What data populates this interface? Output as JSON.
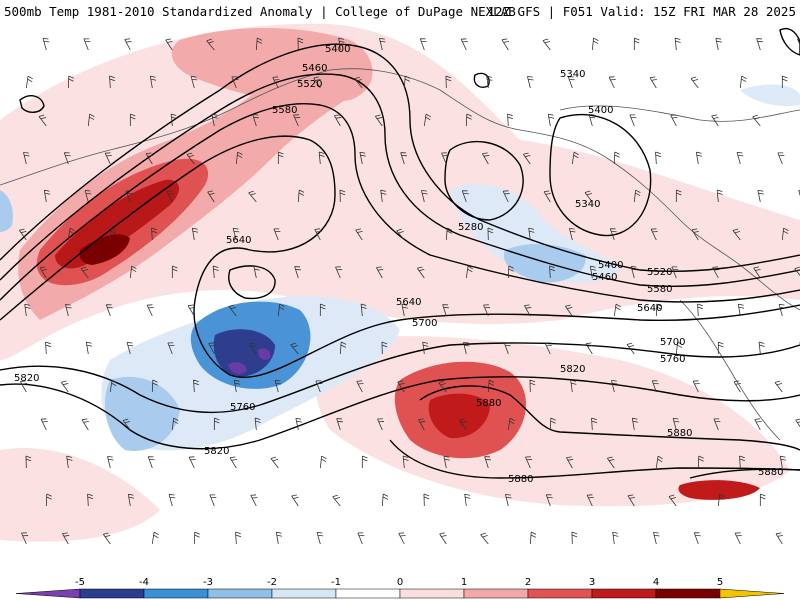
{
  "header": {
    "title": "500mb Temp 1981-2010 Standardized Anomaly | College of DuPage NEXLAB",
    "run": "12Z GFS | F051 Valid: 15Z FRI MAR 28 2025"
  },
  "contour_labels": [
    {
      "text": "5400"
    },
    {
      "text": "5460"
    },
    {
      "text": "5520"
    },
    {
      "text": "5580"
    },
    {
      "text": "5340"
    },
    {
      "text": "5400"
    },
    {
      "text": "5340"
    },
    {
      "text": "5280"
    },
    {
      "text": "5640"
    },
    {
      "text": "5400"
    },
    {
      "text": "5460"
    },
    {
      "text": "5520"
    },
    {
      "text": "5580"
    },
    {
      "text": "5640"
    },
    {
      "text": "5640"
    },
    {
      "text": "5700"
    },
    {
      "text": "5700"
    },
    {
      "text": "5760"
    },
    {
      "text": "5820"
    },
    {
      "text": "5760"
    },
    {
      "text": "5820"
    },
    {
      "text": "5820"
    },
    {
      "text": "5880"
    },
    {
      "text": "5880"
    },
    {
      "text": "5880"
    },
    {
      "text": "5880"
    }
  ],
  "colorbar": {
    "ticks": [
      "-5",
      "-4",
      "-3",
      "-2",
      "-1",
      "0",
      "1",
      "2",
      "3",
      "4",
      "5"
    ],
    "colors": [
      "#7a3fb0",
      "#2b3d8f",
      "#3b8fd6",
      "#8ec0e8",
      "#d6e6f5",
      "#ffffff",
      "#fbdede",
      "#f4a9a9",
      "#e25252",
      "#c01a1a",
      "#7a0000",
      "#f5c400"
    ]
  },
  "colors": {
    "cold_extreme": "#6a3aa8",
    "cold_strong": "#2f3d8f",
    "cold_moderate": "#4a93d6",
    "cold_weak": "#a9cbee",
    "cold_faint": "#dde9f7",
    "warm_faint": "#fbe1e1",
    "warm_weak": "#f3aaaa",
    "warm_moderate": "#e05252",
    "warm_strong": "#b81818",
    "warm_extreme": "#7a0000"
  }
}
